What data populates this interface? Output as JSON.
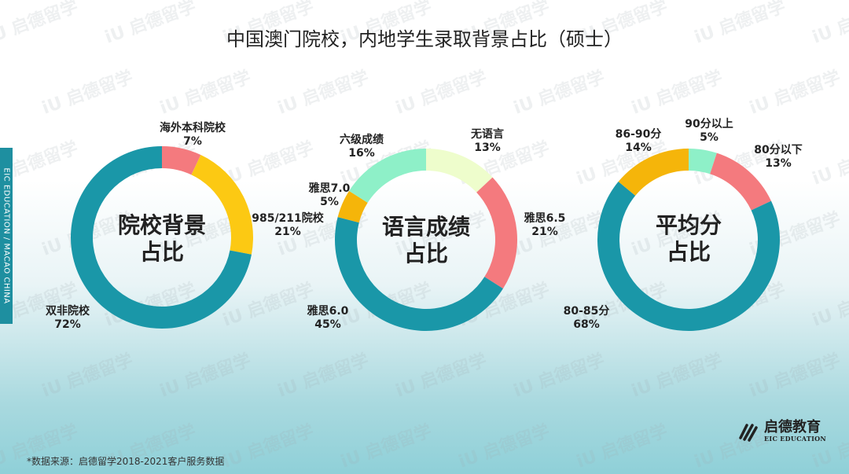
{
  "title": "中国澳门院校，内地学生录取背景占比（硕士）",
  "sidebar": {
    "text": "EIC EDUCATION  /  MACAO CHINA"
  },
  "footnote": "*数据来源：启德留学2018-2021客户服务数据",
  "logo": {
    "cn": "启德教育",
    "en": "EIC EDUCATION"
  },
  "watermark": {
    "cn": "启德留学",
    "en": "EIC EDUCATION"
  },
  "charts": [
    {
      "center": [
        "院校背景",
        "占比"
      ],
      "labels": [
        {
          "name": "海外本科院校",
          "pct": "7%"
        },
        {
          "name": "985/211院校",
          "pct": "21%"
        },
        {
          "name": "双非院校",
          "pct": "72%"
        }
      ]
    },
    {
      "center": [
        "语言成绩",
        "占比"
      ],
      "labels": [
        {
          "name": "无语言",
          "pct": "13%"
        },
        {
          "name": "雅思6.5",
          "pct": "21%"
        },
        {
          "name": "雅思6.0",
          "pct": "45%"
        },
        {
          "name": "雅思7.0",
          "pct": "5%"
        },
        {
          "name": "六级成绩",
          "pct": "16%"
        }
      ]
    },
    {
      "center": [
        "平均分",
        "占比"
      ],
      "labels": [
        {
          "name": "90分以上",
          "pct": "5%"
        },
        {
          "name": "80分以下",
          "pct": "13%"
        },
        {
          "name": "80-85分",
          "pct": "68%"
        },
        {
          "name": "86-90分",
          "pct": "14%"
        }
      ]
    }
  ],
  "colors": {
    "teal": "#1a97a8",
    "pink": "#f47a7e",
    "yellow": "#fcc913",
    "amber": "#f5b50a",
    "mint": "#8ef0c8",
    "cream": "#eefdcc"
  },
  "chart_data": [
    {
      "type": "pie",
      "title": "院校背景占比",
      "categories": [
        "海外本科院校",
        "985/211院校",
        "双非院校"
      ],
      "values": [
        7,
        21,
        72
      ],
      "colors": [
        "#f47a7e",
        "#fcc913",
        "#1a97a8"
      ]
    },
    {
      "type": "pie",
      "title": "语言成绩占比",
      "categories": [
        "无语言",
        "雅思6.5",
        "雅思6.0",
        "雅思7.0",
        "六级成绩"
      ],
      "values": [
        13,
        21,
        45,
        5,
        16
      ],
      "colors": [
        "#eefdcc",
        "#f47a7e",
        "#1a97a8",
        "#f5b50a",
        "#8ef0c8"
      ]
    },
    {
      "type": "pie",
      "title": "平均分占比",
      "categories": [
        "90分以上",
        "80分以下",
        "80-85分",
        "86-90分"
      ],
      "values": [
        5,
        13,
        68,
        14
      ],
      "colors": [
        "#8ef0c8",
        "#f47a7e",
        "#1a97a8",
        "#f5b50a"
      ]
    }
  ]
}
